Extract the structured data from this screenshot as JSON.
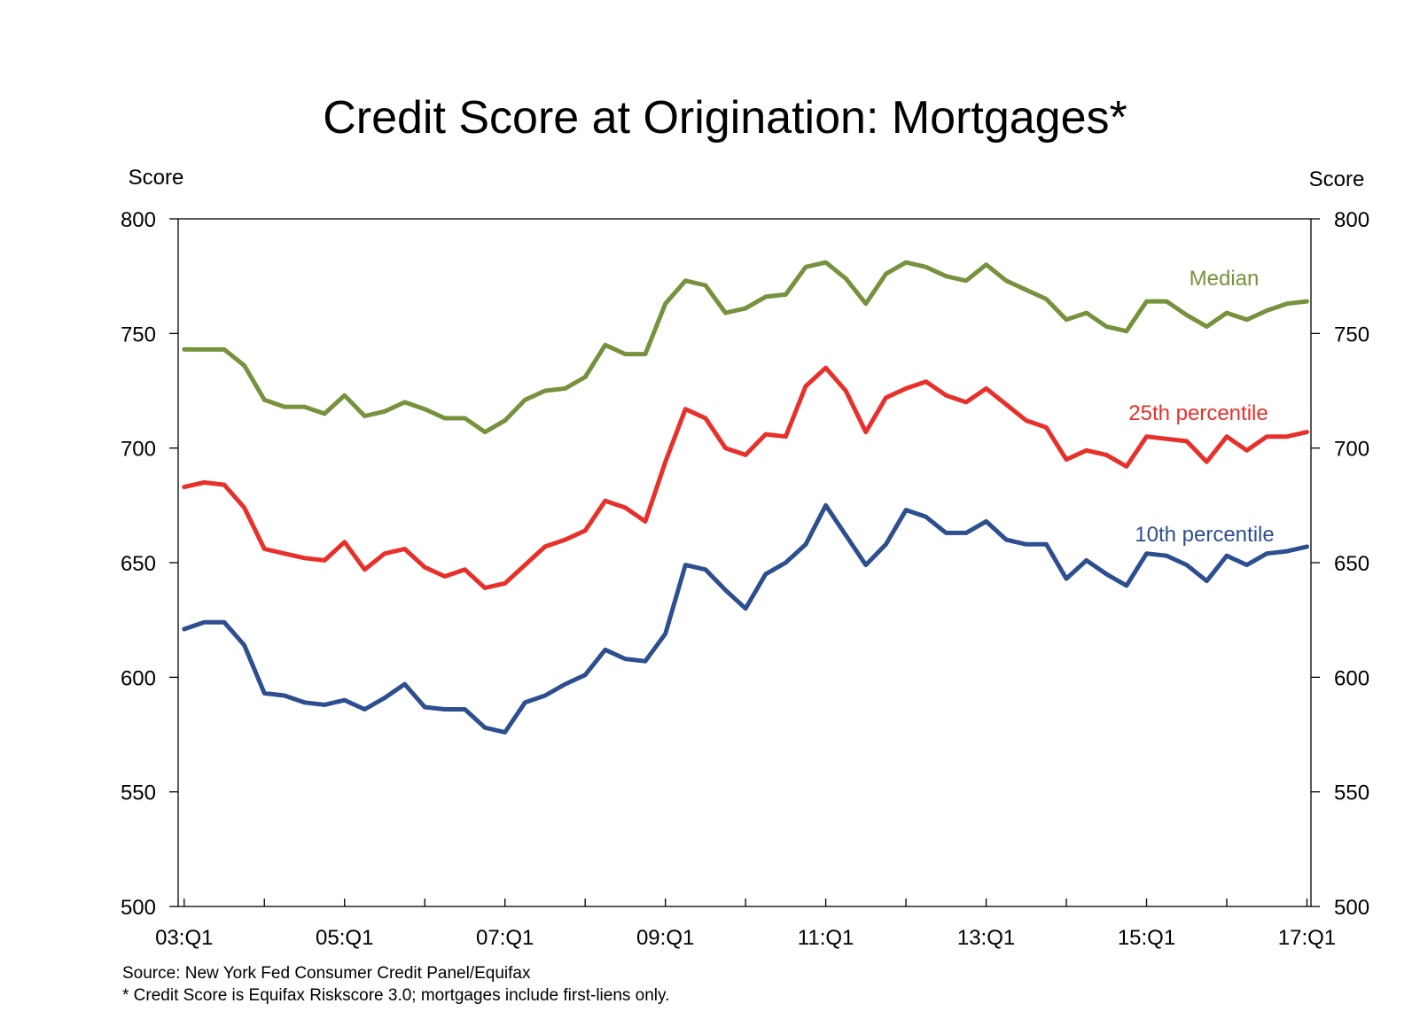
{
  "chart_data": {
    "type": "line",
    "title": "Credit Score at Origination: Mortgages*",
    "left_axis_title": "Score",
    "right_axis_title": "Score",
    "ylim": [
      500,
      800
    ],
    "yticks": [
      "500",
      "550",
      "600",
      "650",
      "700",
      "750",
      "800"
    ],
    "xlim": [
      "03:Q1",
      "17:Q1"
    ],
    "xtick_labels": [
      "03:Q1",
      "05:Q1",
      "07:Q1",
      "09:Q1",
      "11:Q1",
      "13:Q1",
      "15:Q1",
      "17:Q1"
    ],
    "grid": false,
    "x": [
      "03:Q1",
      "03:Q2",
      "03:Q3",
      "03:Q4",
      "04:Q1",
      "04:Q2",
      "04:Q3",
      "04:Q4",
      "05:Q1",
      "05:Q2",
      "05:Q3",
      "05:Q4",
      "06:Q1",
      "06:Q2",
      "06:Q3",
      "06:Q4",
      "07:Q1",
      "07:Q2",
      "07:Q3",
      "07:Q4",
      "08:Q1",
      "08:Q2",
      "08:Q3",
      "08:Q4",
      "09:Q1",
      "09:Q2",
      "09:Q3",
      "09:Q4",
      "10:Q1",
      "10:Q2",
      "10:Q3",
      "10:Q4",
      "11:Q1",
      "11:Q2",
      "11:Q3",
      "11:Q4",
      "12:Q1",
      "12:Q2",
      "12:Q3",
      "12:Q4",
      "13:Q1",
      "13:Q2",
      "13:Q3",
      "13:Q4",
      "14:Q1",
      "14:Q2",
      "14:Q3",
      "14:Q4",
      "15:Q1",
      "15:Q2",
      "15:Q3",
      "15:Q4",
      "16:Q1",
      "16:Q2",
      "16:Q3",
      "16:Q4",
      "17:Q1"
    ],
    "series": [
      {
        "name": "Median",
        "color": "#76923c",
        "values": [
          743,
          743,
          743,
          736,
          721,
          718,
          718,
          715,
          723,
          714,
          716,
          720,
          717,
          713,
          713,
          707,
          712,
          721,
          725,
          726,
          731,
          745,
          741,
          741,
          763,
          773,
          771,
          759,
          761,
          766,
          767,
          779,
          781,
          774,
          763,
          776,
          781,
          779,
          775,
          773,
          780,
          773,
          769,
          765,
          756,
          759,
          753,
          751,
          764,
          764,
          758,
          753,
          759,
          756,
          760,
          763,
          764
        ]
      },
      {
        "name": "25th percentile",
        "color": "#e8302b",
        "values": [
          683,
          685,
          684,
          674,
          656,
          654,
          652,
          651,
          659,
          647,
          654,
          656,
          648,
          644,
          647,
          639,
          641,
          649,
          657,
          660,
          664,
          677,
          674,
          668,
          694,
          717,
          713,
          700,
          697,
          706,
          705,
          727,
          735,
          725,
          707,
          722,
          726,
          729,
          723,
          720,
          726,
          719,
          712,
          709,
          695,
          699,
          697,
          692,
          705,
          704,
          703,
          694,
          705,
          699,
          705,
          705,
          707
        ]
      },
      {
        "name": "10th percentile",
        "color": "#2d4f8f",
        "values": [
          621,
          624,
          624,
          614,
          593,
          592,
          589,
          588,
          590,
          586,
          591,
          597,
          587,
          586,
          586,
          578,
          576,
          589,
          592,
          597,
          601,
          612,
          608,
          607,
          619,
          649,
          647,
          638,
          630,
          645,
          650,
          658,
          675,
          662,
          649,
          658,
          673,
          670,
          663,
          663,
          668,
          660,
          658,
          658,
          643,
          651,
          645,
          640,
          654,
          653,
          649,
          642,
          653,
          649,
          654,
          655,
          657
        ]
      }
    ],
    "notes": [
      "Source: New York Fed Consumer Credit Panel/Equifax",
      "* Credit Score is Equifax Riskscore 3.0; mortgages include  first-liens only."
    ]
  }
}
